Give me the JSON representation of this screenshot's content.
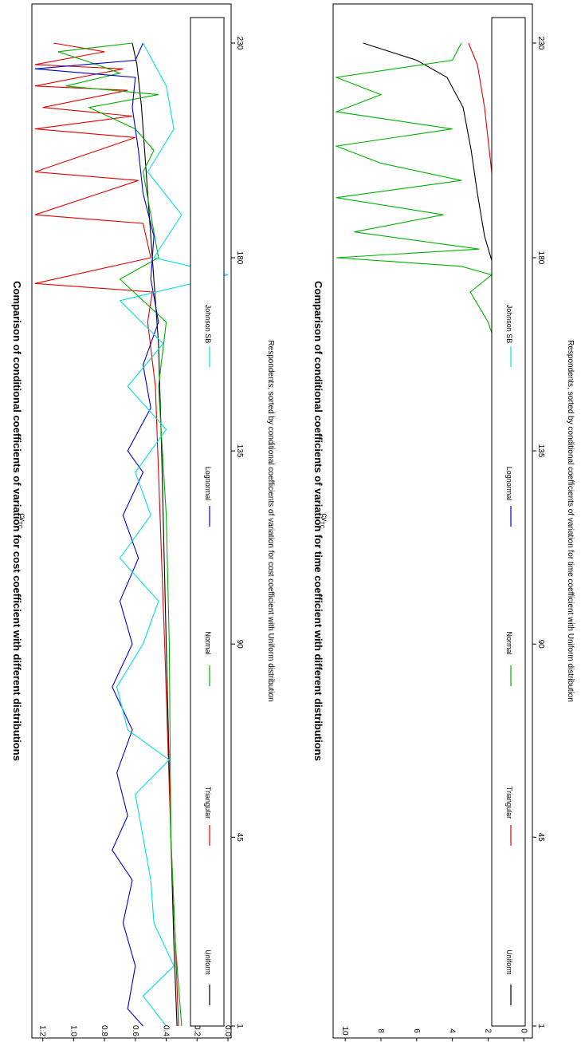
{
  "chart_data": [
    {
      "type": "line",
      "title": "Comparison of conditional coefficients of variation for cost coefficient with different distributions",
      "xlabel": "Respondents, sorted by conditional coefficients of variation for cost coefficient with Uniform distribution",
      "ylabel": "cv",
      "ylabel_sub": "TC",
      "x_ticks": [
        1,
        45,
        90,
        135,
        180,
        230
      ],
      "x_tick_labels": [
        "1",
        "45",
        "90",
        "135",
        "180",
        "230"
      ],
      "xlim": [
        1,
        230
      ],
      "y_ticks": [
        0.0,
        0.2,
        0.4,
        0.6,
        0.8,
        1.0,
        1.2
      ],
      "y_tick_labels": [
        "0.0",
        "0.2",
        "0.4",
        "0.6",
        "0.8",
        "1.0",
        "1.2"
      ],
      "ylim": [
        0,
        1.25
      ],
      "legend_position": "bottom",
      "legend": [
        {
          "name": "Uniform",
          "color": "#000000"
        },
        {
          "name": "Triangular",
          "color": "#e00000"
        },
        {
          "name": "Normal",
          "color": "#00b000"
        },
        {
          "name": "Lognormal",
          "color": "#0000cc"
        },
        {
          "name": "Johnson SB",
          "color": "#00e0e0"
        }
      ],
      "series": [
        {
          "name": "Uniform",
          "color": "#000000",
          "x": [
            1,
            20,
            45,
            90,
            135,
            160,
            180,
            200,
            215,
            225,
            230
          ],
          "values": [
            0.33,
            0.35,
            0.37,
            0.4,
            0.43,
            0.45,
            0.49,
            0.53,
            0.56,
            0.59,
            0.62
          ]
        },
        {
          "name": "Triangular",
          "color": "#e00000",
          "x": [
            1,
            20,
            45,
            90,
            120,
            150,
            165,
            172,
            174,
            180,
            188,
            190,
            198,
            200,
            208,
            210,
            213,
            215,
            219,
            220,
            224,
            225,
            228,
            230
          ],
          "values": [
            0.32,
            0.34,
            0.37,
            0.41,
            0.44,
            0.47,
            0.52,
            0.49,
            1.25,
            0.5,
            0.55,
            1.25,
            0.58,
            1.25,
            0.6,
            1.25,
            0.62,
            1.2,
            0.65,
            1.25,
            0.68,
            1.25,
            0.8,
            1.13
          ]
        },
        {
          "name": "Normal",
          "color": "#00b000",
          "x": [
            1,
            20,
            45,
            90,
            120,
            150,
            165,
            175,
            180,
            190,
            200,
            205,
            210,
            215,
            218,
            220,
            223,
            225,
            228,
            230
          ],
          "values": [
            0.3,
            0.34,
            0.37,
            0.38,
            0.4,
            0.45,
            0.4,
            0.7,
            0.45,
            0.5,
            0.55,
            0.48,
            0.6,
            0.9,
            0.45,
            1.05,
            0.7,
            0.85,
            1.1,
            0.62
          ]
        },
        {
          "name": "Lognormal",
          "color": "#0000cc",
          "x": [
            1,
            5,
            15,
            25,
            35,
            42,
            50,
            60,
            70,
            80,
            90,
            100,
            110,
            120,
            130,
            135,
            145,
            155,
            165,
            175,
            185,
            195,
            205,
            215,
            222,
            224,
            226,
            230
          ],
          "values": [
            0.55,
            0.65,
            0.6,
            0.68,
            0.62,
            0.75,
            0.65,
            0.72,
            0.62,
            0.75,
            0.62,
            0.7,
            0.58,
            0.68,
            0.55,
            0.65,
            0.5,
            0.55,
            0.45,
            0.5,
            0.48,
            0.55,
            0.58,
            0.62,
            0.6,
            1.25,
            0.6,
            0.55
          ]
        },
        {
          "name": "Johnson SB",
          "color": "#00e0e0",
          "x": [
            1,
            8,
            15,
            25,
            35,
            45,
            55,
            63,
            70,
            80,
            90,
            100,
            110,
            120,
            130,
            140,
            150,
            160,
            170,
            176,
            180,
            190,
            200,
            210,
            220,
            230
          ],
          "values": [
            0.4,
            0.55,
            0.35,
            0.48,
            0.5,
            0.55,
            0.6,
            0.38,
            0.65,
            0.72,
            0.55,
            0.45,
            0.7,
            0.5,
            0.6,
            0.4,
            0.65,
            0.42,
            0.7,
            0.0,
            0.48,
            0.3,
            0.52,
            0.35,
            0.4,
            0.55
          ]
        }
      ]
    },
    {
      "type": "line",
      "title": "Comparison of conditional coefficients of variation for time coefficient with different distributions",
      "xlabel": "Respondents, sorted by conditional coefficients of variation for time coefficient with Uniform distribution",
      "ylabel": "cv",
      "ylabel_sub": "TC",
      "x_ticks": [
        1,
        45,
        90,
        135,
        180,
        230
      ],
      "x_tick_labels": [
        "1",
        "45",
        "90",
        "135",
        "180",
        "230"
      ],
      "xlim": [
        1,
        230
      ],
      "y_ticks": [
        0,
        2,
        4,
        6,
        8,
        10
      ],
      "y_tick_labels": [
        "0",
        "2",
        "4",
        "6",
        "8",
        "10"
      ],
      "ylim": [
        -0.3,
        10.5
      ],
      "legend_position": "bottom",
      "legend": [
        {
          "name": "Uniform",
          "color": "#000000"
        },
        {
          "name": "Triangular",
          "color": "#e00000"
        },
        {
          "name": "Normal",
          "color": "#00b000"
        },
        {
          "name": "Lognormal",
          "color": "#0000cc"
        },
        {
          "name": "Johnson SB",
          "color": "#00e0e0"
        }
      ],
      "series": [
        {
          "name": "Uniform",
          "color": "#000000",
          "x": [
            1,
            45,
            90,
            135,
            160,
            178,
            185,
            195,
            205,
            215,
            222,
            226,
            230
          ],
          "values": [
            0.3,
            0.4,
            0.55,
            0.75,
            1.1,
            1.7,
            2.2,
            2.6,
            2.95,
            3.4,
            4.3,
            6.0,
            9.0
          ]
        },
        {
          "name": "Triangular",
          "color": "#e00000",
          "x": [
            1,
            45,
            90,
            135,
            160,
            180,
            200,
            215,
            225,
            230
          ],
          "values": [
            0.3,
            0.4,
            0.55,
            0.7,
            1.0,
            1.5,
            1.8,
            2.2,
            2.6,
            3.1
          ]
        },
        {
          "name": "Normal",
          "color": "#00b000",
          "x": [
            1,
            45,
            90,
            135,
            155,
            165,
            172,
            176,
            178,
            180,
            182,
            186,
            190,
            194,
            198,
            202,
            206,
            210,
            214,
            218,
            222,
            226,
            230
          ],
          "values": [
            0.3,
            0.4,
            0.6,
            0.8,
            1.2,
            2.0,
            3.0,
            1.8,
            3.5,
            10.5,
            2.5,
            9.5,
            4.5,
            10.5,
            3.5,
            8.0,
            10.5,
            4.0,
            10.5,
            8.0,
            10.5,
            4.0,
            3.5
          ]
        },
        {
          "name": "Lognormal",
          "color": "#0000cc",
          "x": [
            1,
            45,
            90,
            135,
            180,
            230
          ],
          "values": [
            0.4,
            0.5,
            0.4,
            0.45,
            0.4,
            0.5
          ]
        },
        {
          "name": "Johnson SB",
          "color": "#00e0e0",
          "x": [
            1,
            45,
            90,
            135,
            180,
            230
          ],
          "values": [
            0.3,
            0.35,
            0.3,
            0.35,
            0.3,
            0.35
          ]
        }
      ]
    }
  ]
}
